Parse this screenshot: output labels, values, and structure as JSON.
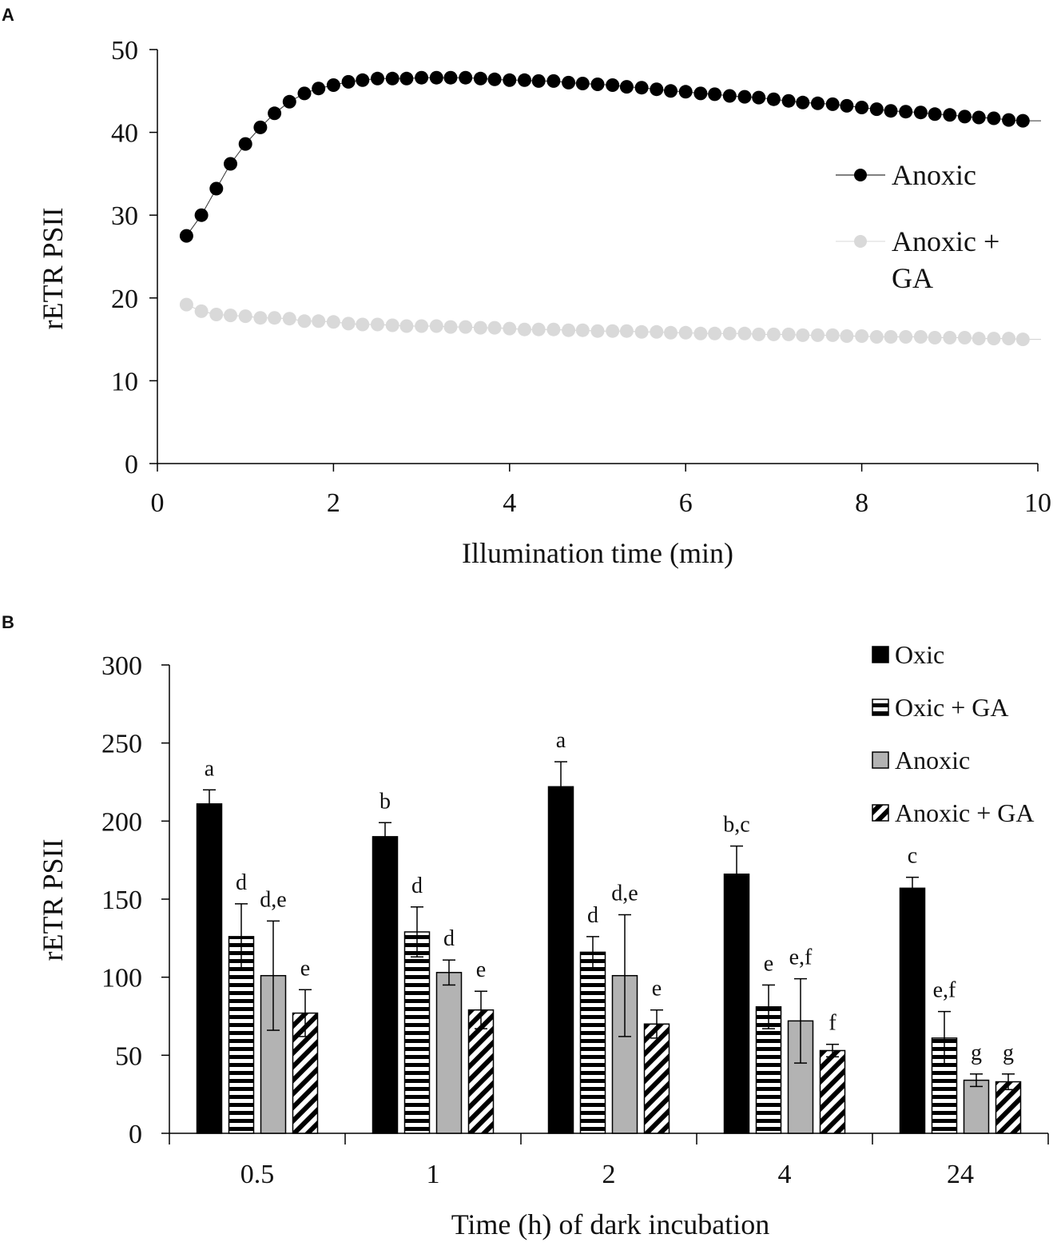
{
  "chart_data": [
    {
      "panel": "A",
      "type": "line",
      "xlabel": "Illumination time (min)",
      "ylabel": "rETR PSII",
      "xlim": [
        0,
        10
      ],
      "ylim": [
        0,
        50
      ],
      "xticks": [
        "0",
        "2",
        "4",
        "6",
        "8",
        "10"
      ],
      "yticks": [
        "0",
        "10",
        "20",
        "30",
        "40",
        "50"
      ],
      "legend": [
        "Anoxic",
        "Anoxic +",
        "GA"
      ],
      "x": [
        0.33,
        0.5,
        0.67,
        0.83,
        1.0,
        1.17,
        1.33,
        1.5,
        1.67,
        1.83,
        2.0,
        2.17,
        2.33,
        2.5,
        2.67,
        2.83,
        3.0,
        3.17,
        3.33,
        3.5,
        3.67,
        3.83,
        4.0,
        4.17,
        4.33,
        4.5,
        4.67,
        4.83,
        5.0,
        5.17,
        5.33,
        5.5,
        5.67,
        5.83,
        6.0,
        6.17,
        6.33,
        6.5,
        6.67,
        6.83,
        7.0,
        7.17,
        7.33,
        7.5,
        7.67,
        7.83,
        8.0,
        8.17,
        8.33,
        8.5,
        8.67,
        8.83,
        9.0,
        9.17,
        9.33,
        9.5,
        9.67,
        9.83
      ],
      "series": [
        {
          "name": "Anoxic",
          "color": "#000000",
          "values": [
            27.5,
            30.0,
            33.2,
            36.2,
            38.6,
            40.6,
            42.3,
            43.7,
            44.7,
            45.3,
            45.7,
            46.1,
            46.3,
            46.5,
            46.5,
            46.5,
            46.6,
            46.6,
            46.6,
            46.6,
            46.5,
            46.4,
            46.3,
            46.3,
            46.2,
            46.2,
            46.0,
            45.9,
            45.8,
            45.7,
            45.5,
            45.4,
            45.2,
            45.0,
            44.9,
            44.7,
            44.6,
            44.4,
            44.3,
            44.2,
            44.0,
            43.8,
            43.6,
            43.5,
            43.4,
            43.2,
            43.0,
            42.8,
            42.6,
            42.5,
            42.4,
            42.2,
            42.1,
            41.9,
            41.8,
            41.7,
            41.5,
            41.4
          ]
        },
        {
          "name": "Anoxic + GA",
          "color": "#d9d9d9",
          "values": [
            19.2,
            18.4,
            18.0,
            17.9,
            17.8,
            17.6,
            17.6,
            17.5,
            17.2,
            17.2,
            17.1,
            16.9,
            16.8,
            16.8,
            16.7,
            16.6,
            16.6,
            16.6,
            16.5,
            16.5,
            16.4,
            16.4,
            16.3,
            16.2,
            16.2,
            16.2,
            16.1,
            16.1,
            16.0,
            16.0,
            16.0,
            15.9,
            15.9,
            15.8,
            15.8,
            15.7,
            15.7,
            15.7,
            15.7,
            15.6,
            15.6,
            15.6,
            15.5,
            15.5,
            15.5,
            15.4,
            15.4,
            15.3,
            15.3,
            15.3,
            15.3,
            15.2,
            15.2,
            15.2,
            15.1,
            15.1,
            15.1,
            15.0
          ]
        }
      ]
    },
    {
      "panel": "B",
      "type": "bar",
      "xlabel": "Time (h) of dark incubation",
      "ylabel": "rETR PSII",
      "ylim": [
        0,
        300
      ],
      "yticks": [
        "0",
        "50",
        "100",
        "150",
        "200",
        "250",
        "300"
      ],
      "categories": [
        "0.5",
        "1",
        "2",
        "4",
        "24"
      ],
      "series": [
        {
          "name": "Oxic",
          "pattern": "solid-black",
          "values": [
            211,
            190,
            222,
            166,
            157
          ],
          "errors": [
            9,
            9,
            16,
            18,
            7
          ],
          "letters": [
            "a",
            "b",
            "a",
            "b,c",
            "c"
          ]
        },
        {
          "name": "Oxic + GA",
          "pattern": "horizontal-stripes",
          "values": [
            126,
            129,
            116,
            81,
            61
          ],
          "errors": [
            21,
            16,
            10,
            14,
            17
          ],
          "letters": [
            "d",
            "d",
            "d",
            "e",
            "e,f"
          ]
        },
        {
          "name": "Anoxic",
          "pattern": "solid-gray",
          "values": [
            101,
            103,
            101,
            72,
            34
          ],
          "errors": [
            35,
            8,
            39,
            27,
            4
          ],
          "letters": [
            "d,e",
            "d",
            "d,e",
            "e,f",
            "g"
          ]
        },
        {
          "name": "Anoxic + GA",
          "pattern": "diagonal-stripes",
          "values": [
            77,
            79,
            70,
            53,
            33
          ],
          "errors": [
            15,
            12,
            9,
            4,
            5
          ],
          "letters": [
            "e",
            "e",
            "e",
            "f",
            "g"
          ]
        }
      ]
    }
  ],
  "panel_labels": [
    "A",
    "B"
  ]
}
